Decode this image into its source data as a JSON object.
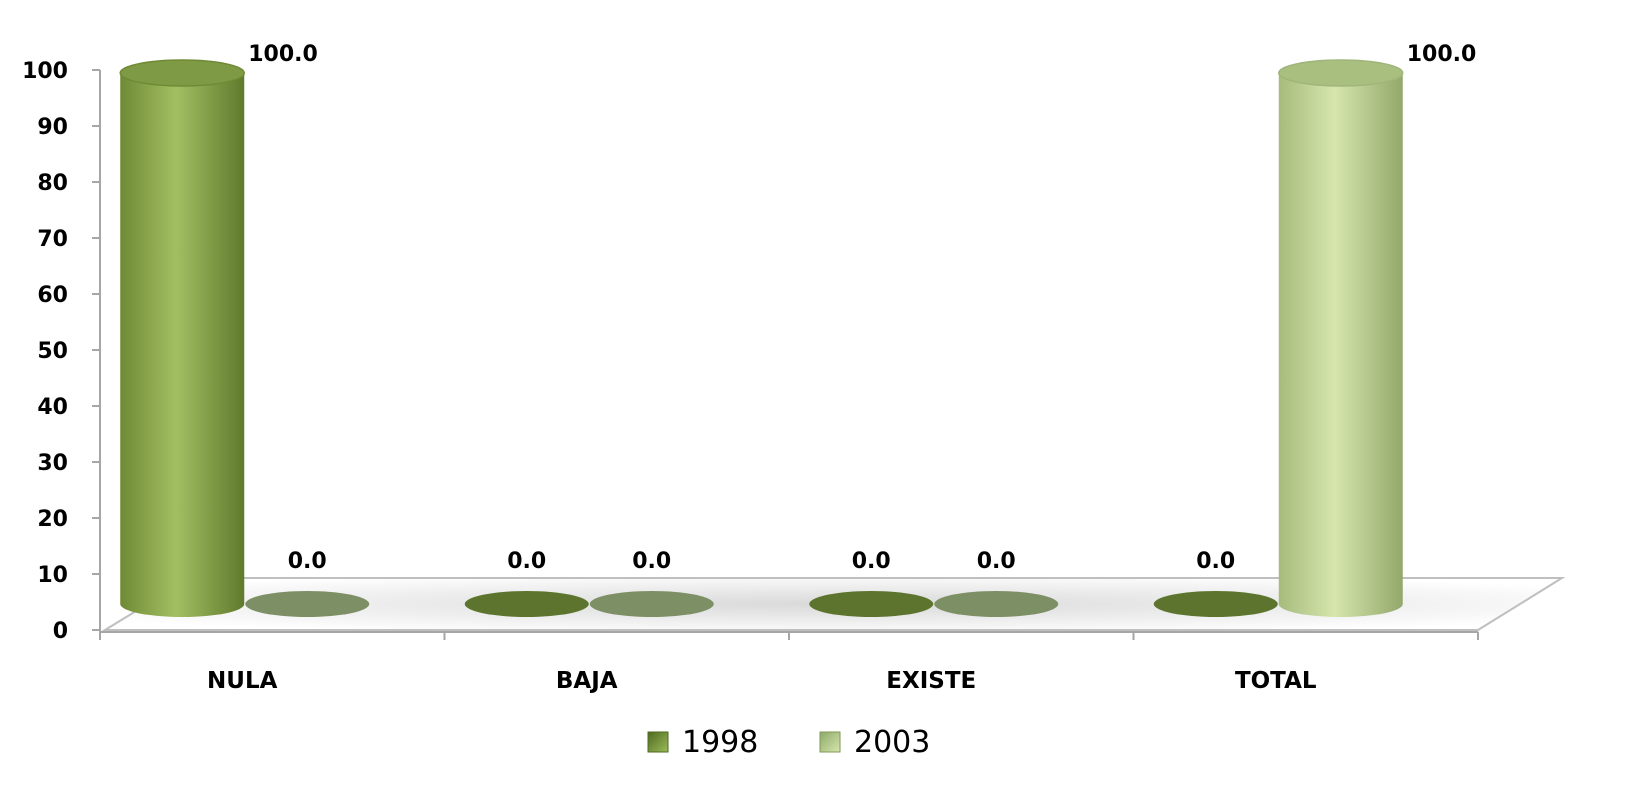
{
  "chart_data": {
    "type": "bar",
    "style": "3d-cylinder",
    "categories": [
      "NULA",
      "BAJA",
      "EXISTE",
      "TOTAL"
    ],
    "series": [
      {
        "name": "1998",
        "values": [
          100.0,
          0.0,
          0.0,
          0.0
        ],
        "labels": [
          "100.0",
          "0.0",
          "0.0",
          "0.0"
        ],
        "color": "#7f9a44"
      },
      {
        "name": "2003",
        "values": [
          0.0,
          0.0,
          0.0,
          100.0
        ],
        "labels": [
          "0.0",
          "0.0",
          "0.0",
          "100.0"
        ],
        "color": "#b5c98a"
      }
    ],
    "ylim": [
      0,
      100
    ],
    "yticks": [
      "0",
      "10",
      "20",
      "30",
      "40",
      "50",
      "60",
      "70",
      "80",
      "90",
      "100"
    ],
    "title": "",
    "xlabel": "",
    "ylabel": "",
    "legend": "bottom",
    "grid": false
  }
}
